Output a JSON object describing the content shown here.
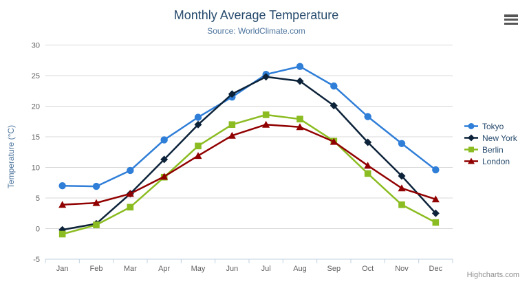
{
  "chart_data": {
    "type": "line",
    "title": "Monthly Average Temperature",
    "subtitle": "Source: WorldClimate.com",
    "xlabel": "",
    "ylabel": "Temperature (°C)",
    "categories": [
      "Jan",
      "Feb",
      "Mar",
      "Apr",
      "May",
      "Jun",
      "Jul",
      "Aug",
      "Sep",
      "Oct",
      "Nov",
      "Dec"
    ],
    "ylim": [
      -5,
      30
    ],
    "ytick_interval": 5,
    "ytick_labels": [
      "-5",
      "0",
      "5",
      "10",
      "15",
      "20",
      "25",
      "30"
    ],
    "grid": true,
    "legend_position": "right",
    "series": [
      {
        "name": "Tokyo",
        "color": "#2f7ed8",
        "marker": "circle",
        "values": [
          7.0,
          6.9,
          9.5,
          14.5,
          18.2,
          21.5,
          25.2,
          26.5,
          23.3,
          18.3,
          13.9,
          9.6
        ]
      },
      {
        "name": "New York",
        "color": "#0d233a",
        "marker": "diamond",
        "values": [
          -0.2,
          0.8,
          5.7,
          11.3,
          17.0,
          22.0,
          24.8,
          24.1,
          20.1,
          14.1,
          8.6,
          2.5
        ]
      },
      {
        "name": "Berlin",
        "color": "#8bbc21",
        "marker": "square",
        "values": [
          -0.9,
          0.6,
          3.5,
          8.4,
          13.5,
          17.0,
          18.6,
          17.9,
          14.3,
          9.0,
          3.9,
          1.0
        ]
      },
      {
        "name": "London",
        "color": "#910000",
        "marker": "triangle",
        "values": [
          3.9,
          4.2,
          5.7,
          8.5,
          11.9,
          15.2,
          17.0,
          16.6,
          14.2,
          10.3,
          6.6,
          4.8
        ]
      }
    ]
  },
  "credits_label": "Highcharts.com",
  "export_menu_icon": "hamburger-icon",
  "colors": {
    "title": "#274b6d",
    "subtitle": "#4d759e",
    "axis_title": "#4d759e",
    "axis_label": "#606060",
    "grid_line": "#d8d8d8",
    "axis_line": "#c0d0e0",
    "legend_text": "#274b6d",
    "credits": "#909090",
    "export_icon": "#555555"
  }
}
